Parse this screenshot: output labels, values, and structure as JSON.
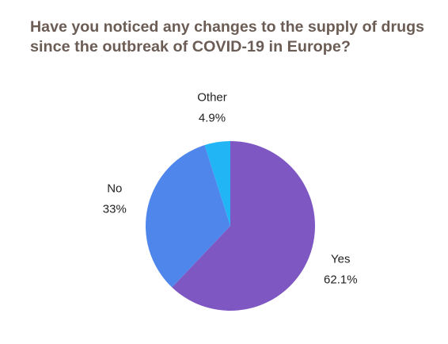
{
  "chart_data": {
    "type": "pie",
    "title": [
      "Have you noticed any changes to the supply of drugs",
      "since the outbreak of COVID-19 in Europe?"
    ],
    "categories": [
      "Yes",
      "No",
      "Other"
    ],
    "values": [
      62.1,
      33,
      4.9
    ],
    "value_labels": [
      "62.1%",
      "33%",
      "4.9%"
    ],
    "colors": [
      "#7e57c2",
      "#4f86ec",
      "#22b5f5"
    ]
  }
}
